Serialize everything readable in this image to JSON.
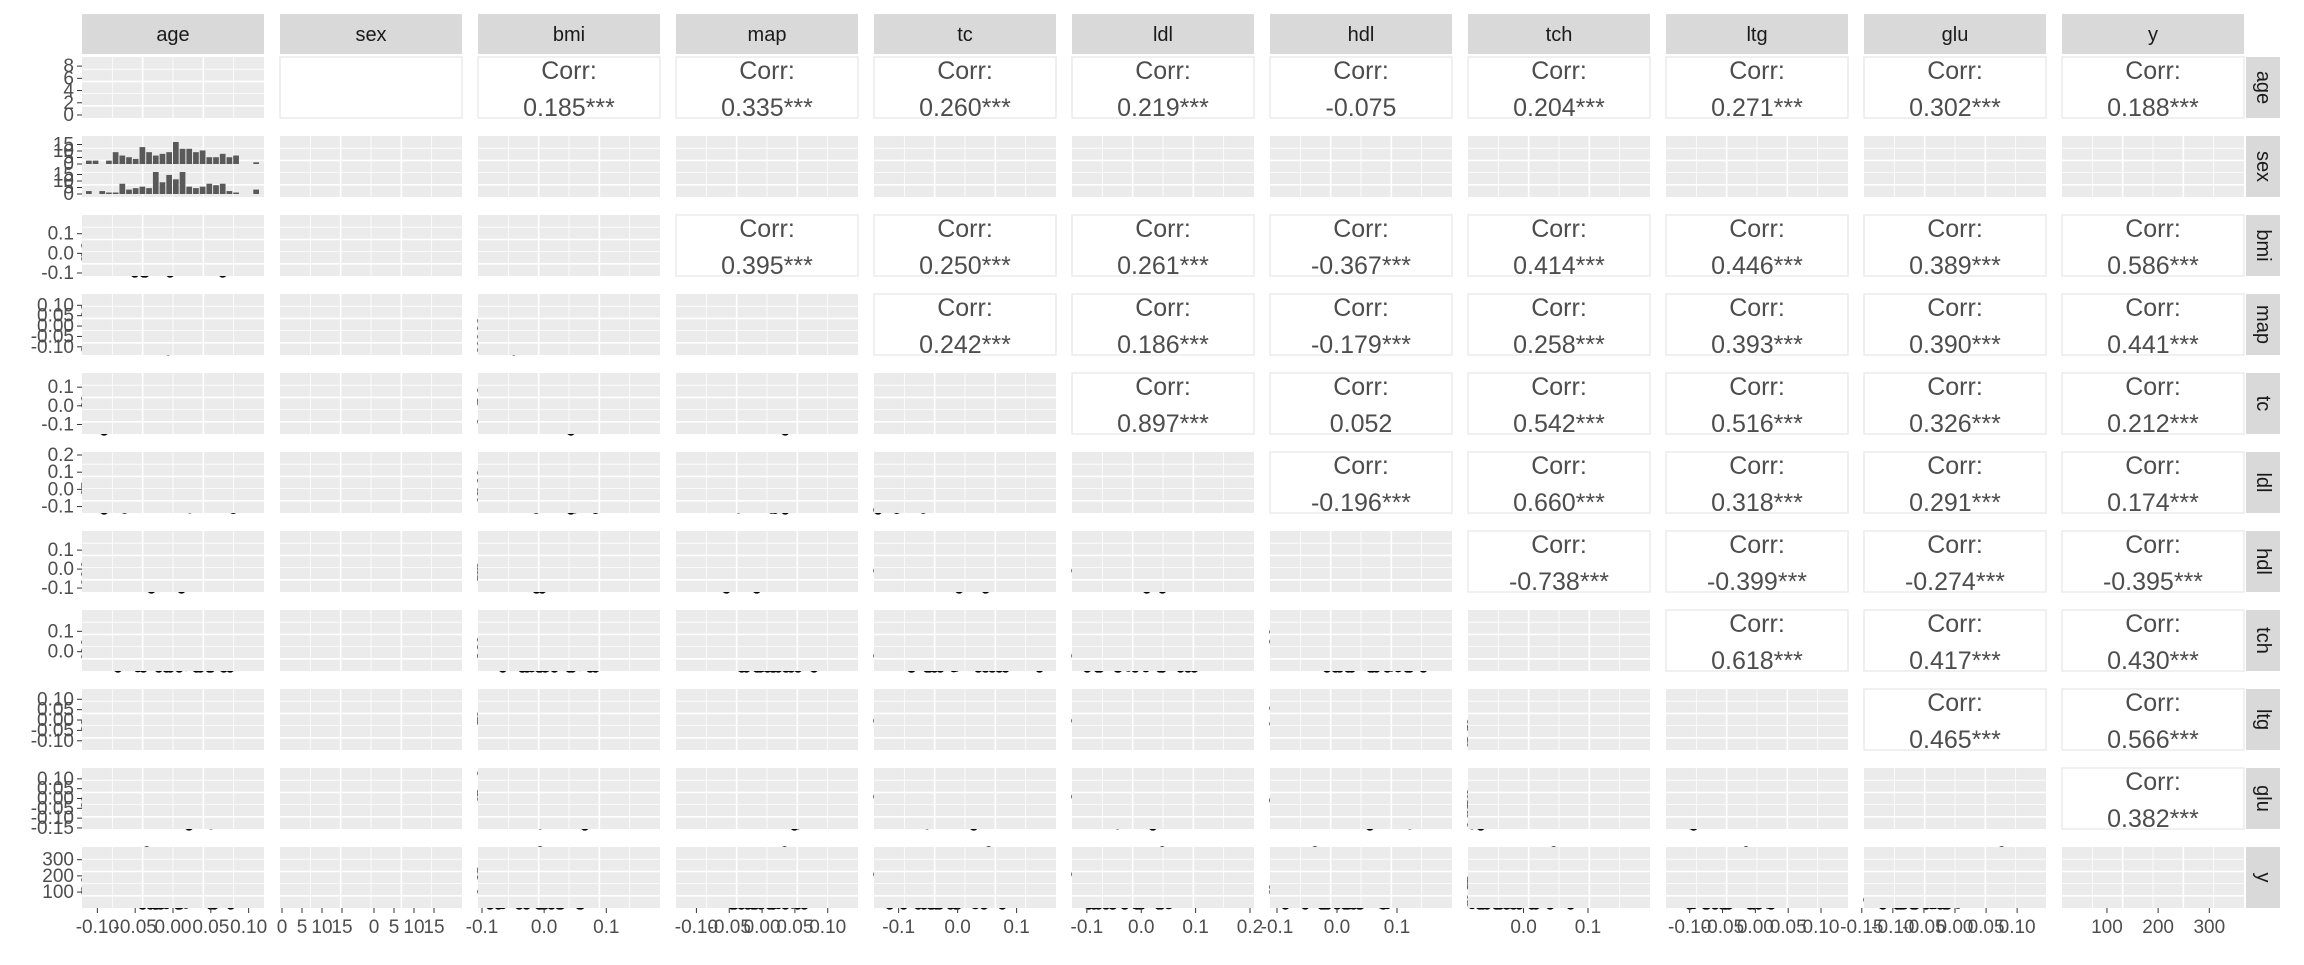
{
  "chart_data": {
    "type": "scatter-matrix",
    "variables": [
      "age",
      "sex",
      "bmi",
      "map",
      "tc",
      "ldl",
      "hdl",
      "tch",
      "ltg",
      "glu",
      "y"
    ],
    "colors": {
      "strip": "#d9d9d9",
      "panel": "#ebebeb",
      "grid": "#ffffff",
      "ink": "#000000",
      "bar": "#595959",
      "text": "#4d4d4d",
      "axis_text": "#4d4d4d"
    },
    "correlations": [
      {
        "row": "age",
        "col": "bmi",
        "label": "Corr:",
        "value": "0.185***"
      },
      {
        "row": "age",
        "col": "map",
        "label": "Corr:",
        "value": "0.335***"
      },
      {
        "row": "age",
        "col": "tc",
        "label": "Corr:",
        "value": "0.260***"
      },
      {
        "row": "age",
        "col": "ldl",
        "label": "Corr:",
        "value": "0.219***"
      },
      {
        "row": "age",
        "col": "hdl",
        "label": "Corr:",
        "value": "-0.075"
      },
      {
        "row": "age",
        "col": "tch",
        "label": "Corr:",
        "value": "0.204***"
      },
      {
        "row": "age",
        "col": "ltg",
        "label": "Corr:",
        "value": "0.271***"
      },
      {
        "row": "age",
        "col": "glu",
        "label": "Corr:",
        "value": "0.302***"
      },
      {
        "row": "age",
        "col": "y",
        "label": "Corr:",
        "value": "0.188***"
      },
      {
        "row": "bmi",
        "col": "map",
        "label": "Corr:",
        "value": "0.395***"
      },
      {
        "row": "bmi",
        "col": "tc",
        "label": "Corr:",
        "value": "0.250***"
      },
      {
        "row": "bmi",
        "col": "ldl",
        "label": "Corr:",
        "value": "0.261***"
      },
      {
        "row": "bmi",
        "col": "hdl",
        "label": "Corr:",
        "value": "-0.367***"
      },
      {
        "row": "bmi",
        "col": "tch",
        "label": "Corr:",
        "value": "0.414***"
      },
      {
        "row": "bmi",
        "col": "ltg",
        "label": "Corr:",
        "value": "0.446***"
      },
      {
        "row": "bmi",
        "col": "glu",
        "label": "Corr:",
        "value": "0.389***"
      },
      {
        "row": "bmi",
        "col": "y",
        "label": "Corr:",
        "value": "0.586***"
      },
      {
        "row": "map",
        "col": "tc",
        "label": "Corr:",
        "value": "0.242***"
      },
      {
        "row": "map",
        "col": "ldl",
        "label": "Corr:",
        "value": "0.186***"
      },
      {
        "row": "map",
        "col": "hdl",
        "label": "Corr:",
        "value": "-0.179***"
      },
      {
        "row": "map",
        "col": "tch",
        "label": "Corr:",
        "value": "0.258***"
      },
      {
        "row": "map",
        "col": "ltg",
        "label": "Corr:",
        "value": "0.393***"
      },
      {
        "row": "map",
        "col": "glu",
        "label": "Corr:",
        "value": "0.390***"
      },
      {
        "row": "map",
        "col": "y",
        "label": "Corr:",
        "value": "0.441***"
      },
      {
        "row": "tc",
        "col": "ldl",
        "label": "Corr:",
        "value": "0.897***"
      },
      {
        "row": "tc",
        "col": "hdl",
        "label": "Corr:",
        "value": "0.052"
      },
      {
        "row": "tc",
        "col": "tch",
        "label": "Corr:",
        "value": "0.542***"
      },
      {
        "row": "tc",
        "col": "ltg",
        "label": "Corr:",
        "value": "0.516***"
      },
      {
        "row": "tc",
        "col": "glu",
        "label": "Corr:",
        "value": "0.326***"
      },
      {
        "row": "tc",
        "col": "y",
        "label": "Corr:",
        "value": "0.212***"
      },
      {
        "row": "ldl",
        "col": "hdl",
        "label": "Corr:",
        "value": "-0.196***"
      },
      {
        "row": "ldl",
        "col": "tch",
        "label": "Corr:",
        "value": "0.660***"
      },
      {
        "row": "ldl",
        "col": "ltg",
        "label": "Corr:",
        "value": "0.318***"
      },
      {
        "row": "ldl",
        "col": "glu",
        "label": "Corr:",
        "value": "0.291***"
      },
      {
        "row": "ldl",
        "col": "y",
        "label": "Corr:",
        "value": "0.174***"
      },
      {
        "row": "hdl",
        "col": "tch",
        "label": "Corr:",
        "value": "-0.738***"
      },
      {
        "row": "hdl",
        "col": "ltg",
        "label": "Corr:",
        "value": "-0.399***"
      },
      {
        "row": "hdl",
        "col": "glu",
        "label": "Corr:",
        "value": "-0.274***"
      },
      {
        "row": "hdl",
        "col": "y",
        "label": "Corr:",
        "value": "-0.395***"
      },
      {
        "row": "tch",
        "col": "ltg",
        "label": "Corr:",
        "value": "0.618***"
      },
      {
        "row": "tch",
        "col": "glu",
        "label": "Corr:",
        "value": "0.417***"
      },
      {
        "row": "tch",
        "col": "y",
        "label": "Corr:",
        "value": "0.430***"
      },
      {
        "row": "ltg",
        "col": "glu",
        "label": "Corr:",
        "value": "0.465***"
      },
      {
        "row": "ltg",
        "col": "y",
        "label": "Corr:",
        "value": "0.566***"
      },
      {
        "row": "glu",
        "col": "y",
        "label": "Corr:",
        "value": "0.382***"
      }
    ],
    "x_tick_labels": [
      {
        "col": "age",
        "labels": [
          "-0.10",
          "-0.05",
          "0.00",
          "0.05",
          "0.10"
        ],
        "values": [
          -0.1,
          -0.05,
          0.0,
          0.05,
          0.1
        ],
        "range": [
          -0.115,
          0.115
        ]
      },
      {
        "col": "sex",
        "labels": [
          "0",
          "5",
          "10",
          "15",
          "0",
          "5",
          "10",
          "15"
        ],
        "sub_counts": [
          0,
          5,
          10,
          15
        ],
        "count_max": 20
      },
      {
        "col": "bmi",
        "labels": [
          "-0.1",
          "0.0",
          "0.1"
        ],
        "values": [
          -0.1,
          0.0,
          0.1
        ],
        "range": [
          -0.1,
          0.18
        ]
      },
      {
        "col": "map",
        "labels": [
          "-0.10",
          "-0.05",
          "0.00",
          "0.05",
          "0.10"
        ],
        "values": [
          -0.1,
          -0.05,
          0.0,
          0.05,
          0.1
        ],
        "range": [
          -0.125,
          0.14
        ]
      },
      {
        "col": "tc",
        "labels": [
          "-0.1",
          "0.0",
          "0.1"
        ],
        "values": [
          -0.1,
          0.0,
          0.1
        ],
        "range": [
          -0.135,
          0.16
        ]
      },
      {
        "col": "ldl",
        "labels": [
          "-0.1",
          "0.0",
          "0.1",
          "0.2"
        ],
        "values": [
          -0.1,
          0.0,
          0.1,
          0.2
        ],
        "range": [
          -0.12,
          0.2
        ]
      },
      {
        "col": "hdl",
        "labels": [
          "-0.1",
          "0.0",
          "0.1"
        ],
        "values": [
          -0.1,
          0.0,
          0.1
        ],
        "range": [
          -0.105,
          0.185
        ]
      },
      {
        "col": "tch",
        "labels": [
          "0.0",
          "0.1"
        ],
        "values": [
          0.0,
          0.1
        ],
        "range": [
          -0.08,
          0.19
        ]
      },
      {
        "col": "ltg",
        "labels": [
          "-0.10",
          "-0.05",
          "0.00",
          "0.05",
          "0.10"
        ],
        "values": [
          -0.1,
          -0.05,
          0.0,
          0.05,
          0.1
        ],
        "range": [
          -0.13,
          0.135
        ]
      },
      {
        "col": "glu",
        "labels": [
          "-0.15",
          "-0.10",
          "-0.05",
          "0.00",
          "0.05",
          "0.10"
        ],
        "values": [
          -0.15,
          -0.1,
          -0.05,
          0.0,
          0.05,
          0.1
        ],
        "range": [
          -0.14,
          0.14
        ]
      },
      {
        "col": "y",
        "labels": [
          "100",
          "200",
          "300"
        ],
        "values": [
          100,
          200,
          300
        ],
        "range": [
          20,
          360
        ]
      }
    ],
    "y_tick_labels": [
      {
        "row": "age",
        "labels": [
          "8",
          "6",
          "4",
          "2",
          "0"
        ],
        "values": [
          8,
          6,
          4,
          2,
          0
        ],
        "range": [
          0,
          9
        ]
      },
      {
        "row": "sex",
        "labels": [
          "15",
          "10",
          "5",
          "0",
          "15",
          "10",
          "5",
          "0"
        ],
        "sub_counts": [
          0,
          5,
          10,
          15
        ],
        "count_max": 20
      },
      {
        "row": "bmi",
        "labels": [
          "0.1",
          "0.0",
          "-0.1"
        ],
        "values": [
          0.1,
          0.0,
          -0.1
        ],
        "range": [
          -0.1,
          0.18
        ]
      },
      {
        "row": "map",
        "labels": [
          "0.10",
          "0.05",
          "0.00",
          "-0.05",
          "-0.10"
        ],
        "values": [
          0.1,
          0.05,
          0.0,
          -0.05,
          -0.1
        ],
        "range": [
          -0.125,
          0.14
        ]
      },
      {
        "row": "tc",
        "labels": [
          "0.1",
          "0.0",
          "-0.1"
        ],
        "values": [
          0.1,
          0.0,
          -0.1
        ],
        "range": [
          -0.135,
          0.16
        ]
      },
      {
        "row": "ldl",
        "labels": [
          "0.2",
          "0.1",
          "0.0",
          "-0.1"
        ],
        "values": [
          0.2,
          0.1,
          0.0,
          -0.1
        ],
        "range": [
          -0.12,
          0.2
        ]
      },
      {
        "row": "hdl",
        "labels": [
          "0.1",
          "0.0",
          "-0.1"
        ],
        "values": [
          0.1,
          0.0,
          -0.1
        ],
        "range": [
          -0.105,
          0.185
        ]
      },
      {
        "row": "tch",
        "labels": [
          "0.1",
          "0.0"
        ],
        "values": [
          0.1,
          0.0
        ],
        "range": [
          -0.08,
          0.19
        ]
      },
      {
        "row": "ltg",
        "labels": [
          "0.10",
          "0.05",
          "0.00",
          "-0.05",
          "-0.10"
        ],
        "values": [
          0.1,
          0.05,
          0.0,
          -0.05,
          -0.1
        ],
        "range": [
          -0.13,
          0.135
        ]
      },
      {
        "row": "glu",
        "labels": [
          "0.10",
          "0.05",
          "0.00",
          "-0.05",
          "-0.10",
          "-0.15"
        ],
        "values": [
          0.1,
          0.05,
          0.0,
          -0.05,
          -0.1,
          -0.15
        ],
        "range": [
          -0.14,
          0.14
        ]
      },
      {
        "row": "y",
        "labels": [
          "300",
          "200",
          "100"
        ],
        "values": [
          300,
          200,
          100
        ],
        "range": [
          20,
          360
        ]
      }
    ],
    "grid": true,
    "legend": "none"
  }
}
